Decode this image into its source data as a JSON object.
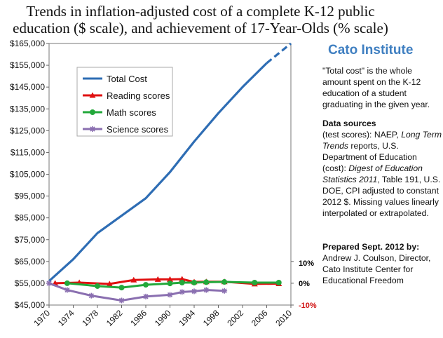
{
  "title_line1": "Trends in inflation-adjusted cost of a complete K-12 public",
  "title_line2": "education ($ scale), and achievement of 17-Year-Olds (% scale)",
  "sidebar": {
    "brand": "Cato Institute",
    "note": "\"Total cost\" is the whole amount spent on the K-12 education of a student graduating in the given year.",
    "data_sources_heading": "Data sources",
    "data_sources": {
      "p1": "(test scores): NAEP, ",
      "p1_italic": "Long Term Trends",
      "p2": " reports, U.S. Department of Education (cost): ",
      "p2_italic": "Digest of Education Statistics 2011",
      "p3": ", Table 191, U.S. DOE, CPI adjusted to constant 2012 $.  Missing values linearly interpolated or extrapolated."
    },
    "prepared_heading": "Prepared Sept. 2012 by:",
    "prepared_body": "Andrew J. Coulson, Director, Cato Institute Center for Educational Freedom"
  },
  "pct_labels": {
    "plus": "10%",
    "zero": "0%",
    "minus": "-10%"
  },
  "colors": {
    "cost": "#2e6db4",
    "reading": "#e01010",
    "math": "#22a83a",
    "science": "#8a6fb0",
    "pct_minus": "#d01010"
  },
  "chart_data": {
    "type": "line",
    "x_ticks": [
      "1970",
      "1974",
      "1978",
      "1982",
      "1986",
      "1990",
      "1994",
      "1998",
      "2002",
      "2006",
      "2010"
    ],
    "y_ticks": [
      "$45,000",
      "$55,000",
      "$65,000",
      "$75,000",
      "$85,000",
      "$95,000",
      "$105,000",
      "$115,000",
      "$125,000",
      "$135,000",
      "$145,000",
      "$155,000",
      "$165,000"
    ],
    "xlim": [
      1970,
      2010
    ],
    "ylim": [
      45000,
      165000
    ],
    "right_axis": {
      "labels": [
        "10%",
        "0%",
        "-10%"
      ],
      "values_pct": [
        10,
        0,
        -10
      ]
    },
    "legend_position": "top-left",
    "series": [
      {
        "name": "Total Cost",
        "color": "#2e6db4",
        "style": "solid-then-dashed",
        "x": [
          1970,
          1974,
          1978,
          1982,
          1986,
          1990,
          1994,
          1998,
          2002,
          2006,
          2010
        ],
        "y": [
          56000,
          66000,
          78000,
          86000,
          94000,
          106000,
          120000,
          133000,
          145000,
          156000,
          165000
        ],
        "dashed_from_index": 9
      },
      {
        "name": "Reading scores",
        "color": "#e01010",
        "marker": "triangle",
        "x": [
          1971,
          1975,
          1980,
          1984,
          1988,
          1990,
          1992,
          1994,
          1996,
          1999,
          2004,
          2008
        ],
        "pct": [
          0,
          0.3,
          -0.3,
          1.5,
          1.8,
          1.8,
          1.9,
          0.6,
          0.7,
          0.7,
          -0.3,
          -0.2
        ]
      },
      {
        "name": "Math scores",
        "color": "#22a83a",
        "marker": "circle",
        "x": [
          1973,
          1978,
          1982,
          1986,
          1990,
          1992,
          1994,
          1996,
          1999,
          2004,
          2008
        ],
        "pct": [
          0,
          -1.3,
          -2.0,
          -0.7,
          -0.1,
          0.3,
          0.3,
          0.5,
          0.6,
          0.3,
          0.3
        ]
      },
      {
        "name": "Science scores",
        "color": "#8a6fb0",
        "marker": "asterisk",
        "x": [
          1970,
          1973,
          1977,
          1982,
          1986,
          1990,
          1992,
          1994,
          1996,
          1999
        ],
        "pct": [
          0,
          -3.1,
          -5.7,
          -7.9,
          -6.1,
          -5.3,
          -4.0,
          -3.7,
          -3.1,
          -3.5
        ]
      }
    ]
  }
}
